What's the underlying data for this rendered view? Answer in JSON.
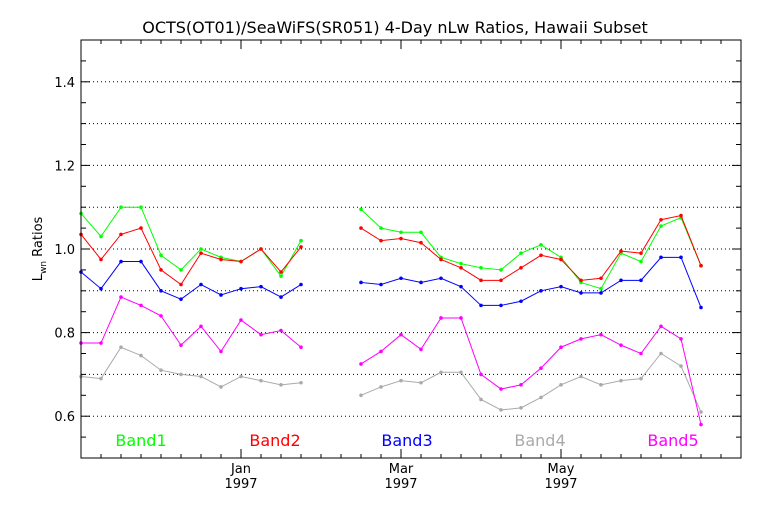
{
  "chart_data": {
    "type": "line",
    "title": "OCTS(OT01)/SeaWiFS(SR051) 4-Day nLw Ratios, Hawaii Subset",
    "ylabel_main": "L",
    "ylabel_sub": "wn",
    "ylabel_rest": " Ratios",
    "ylim": [
      0.5,
      1.5
    ],
    "xlim": [
      0,
      33
    ],
    "y_ticks": [
      0.6,
      0.8,
      1.0,
      1.2,
      1.4
    ],
    "y_gridlines": [
      0.6,
      0.7,
      0.8,
      0.9,
      1.0,
      1.1,
      1.2,
      1.3,
      1.4
    ],
    "grid": true,
    "x_ticks": [
      {
        "x": 8,
        "label": "Jan",
        "year": "1997"
      },
      {
        "x": 16,
        "label": "Mar",
        "year": "1997"
      },
      {
        "x": 24,
        "label": "May",
        "year": "1997"
      }
    ],
    "x": [
      0,
      1,
      2,
      3,
      4,
      5,
      6,
      7,
      8,
      9,
      10,
      11,
      12,
      13,
      14,
      15,
      16,
      17,
      18,
      19,
      20,
      21,
      22,
      23,
      24,
      25,
      26,
      27,
      28,
      29,
      30,
      31,
      32
    ],
    "series": [
      {
        "name": "Band1",
        "color": "#00ff00",
        "values": [
          1.085,
          1.03,
          1.1,
          1.1,
          0.985,
          0.95,
          1.0,
          0.98,
          0.97,
          1.0,
          0.935,
          1.02,
          null,
          null,
          1.095,
          1.05,
          1.04,
          1.04,
          0.98,
          0.965,
          0.955,
          0.95,
          0.99,
          1.01,
          0.98,
          0.92,
          0.905,
          0.99,
          0.97,
          1.055,
          1.075,
          0.96,
          null
        ]
      },
      {
        "name": "Band2",
        "color": "#ff0000",
        "values": [
          1.035,
          0.975,
          1.035,
          1.05,
          0.95,
          0.915,
          0.99,
          0.975,
          0.97,
          1.0,
          0.945,
          1.005,
          null,
          null,
          1.05,
          1.02,
          1.025,
          1.015,
          0.975,
          0.955,
          0.925,
          0.925,
          0.955,
          0.985,
          0.975,
          0.925,
          0.93,
          0.995,
          0.99,
          1.07,
          1.08,
          0.96,
          null
        ]
      },
      {
        "name": "Band3",
        "color": "#0000ff",
        "values": [
          0.945,
          0.905,
          0.97,
          0.97,
          0.9,
          0.88,
          0.915,
          0.89,
          0.905,
          0.91,
          0.885,
          0.915,
          null,
          null,
          0.92,
          0.915,
          0.93,
          0.92,
          0.93,
          0.91,
          0.865,
          0.865,
          0.875,
          0.9,
          0.91,
          0.895,
          0.895,
          0.925,
          0.925,
          0.98,
          0.98,
          0.86,
          null
        ]
      },
      {
        "name": "Band4",
        "color": "#aaaaaa",
        "values": [
          0.695,
          0.69,
          0.765,
          0.745,
          0.71,
          0.7,
          0.695,
          0.67,
          0.695,
          0.685,
          0.675,
          0.68,
          null,
          null,
          0.65,
          0.67,
          0.685,
          0.68,
          0.705,
          0.705,
          0.64,
          0.615,
          0.62,
          0.645,
          0.675,
          0.695,
          0.675,
          0.685,
          0.69,
          0.75,
          0.72,
          0.61,
          null
        ]
      },
      {
        "name": "Band5",
        "color": "#ff00ff",
        "values": [
          0.775,
          0.775,
          0.885,
          0.865,
          0.84,
          0.77,
          0.815,
          0.755,
          0.83,
          0.795,
          0.805,
          0.765,
          null,
          null,
          0.725,
          0.755,
          0.795,
          0.76,
          0.835,
          0.835,
          0.7,
          0.665,
          0.675,
          0.715,
          0.765,
          0.785,
          0.795,
          0.77,
          0.75,
          0.815,
          0.785,
          0.58,
          null
        ]
      }
    ],
    "legend": [
      "Band1",
      "Band2",
      "Band3",
      "Band4",
      "Band5"
    ],
    "legend_placement": "bottom, inside plot, spread horizontally"
  }
}
